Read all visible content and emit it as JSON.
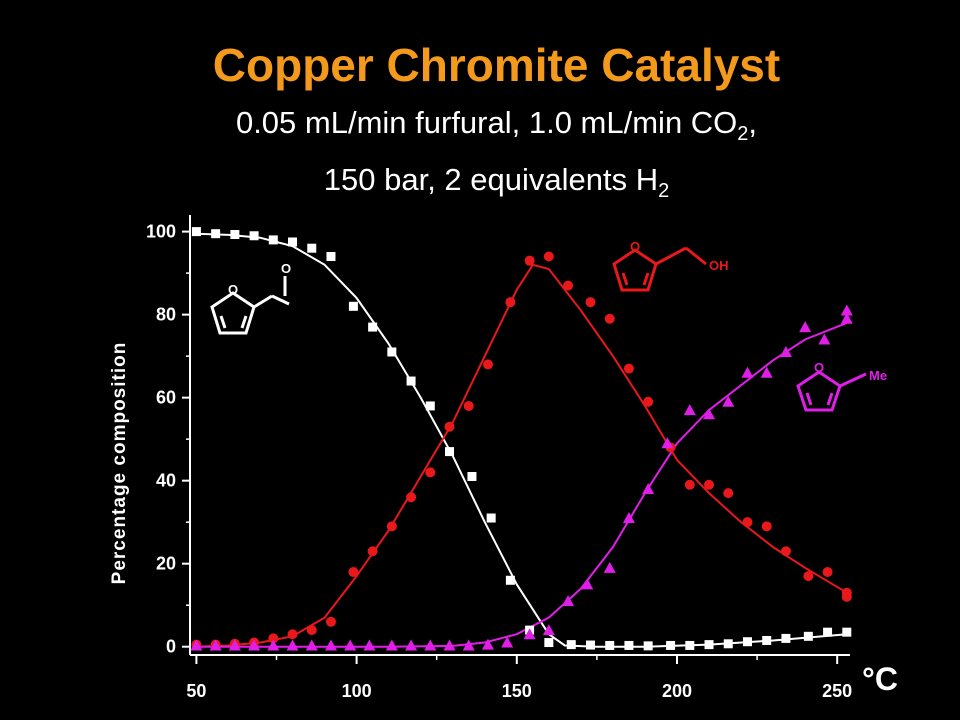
{
  "title": "Copper Chromite Catalyst",
  "subtitle": {
    "line1_a": "0.05 mL/min furfural, 1.0 mL/min CO",
    "line1_sub": "2",
    "line1_b": ",",
    "line2_a": "150 bar, 2 equivalents H",
    "line2_sub": "2"
  },
  "molecule_labels": {
    "furfural_O_ring": "O",
    "furfural_O_carbonyl": "O",
    "alcohol_O_ring": "O",
    "alcohol_OH": "OH",
    "methylfuran_O_ring": "O",
    "methylfuran_Me": "Me"
  },
  "colors": {
    "background": "#000000",
    "title": "#f39a1d",
    "furfural": "#ffffff",
    "furfuryl_alcohol": "#e8181b",
    "methylfuran": "#e01ee8",
    "axes": "#ffffff"
  },
  "chart_data": {
    "type": "scatter",
    "title": "",
    "xlabel": "°C",
    "ylabel": "Percentage composition",
    "xlim": [
      48,
      254
    ],
    "ylim": [
      -2,
      104
    ],
    "xticks": [
      50,
      100,
      150,
      200,
      250
    ],
    "yticks": [
      0,
      20,
      40,
      60,
      80,
      100
    ],
    "grid": false,
    "legend": "none",
    "series": [
      {
        "marker": "square",
        "color": "#ffffff",
        "x": [
          50,
          56,
          62,
          68,
          74,
          80,
          86,
          92,
          99,
          105,
          111,
          117,
          123,
          129,
          136,
          142,
          148,
          154,
          160,
          167,
          173,
          179,
          185,
          191,
          198,
          204,
          210,
          216,
          222,
          228,
          234,
          241,
          247,
          253
        ],
        "y": [
          100,
          99.5,
          99.3,
          99,
          98,
          97.5,
          96,
          94,
          82,
          77,
          71,
          64,
          58,
          47,
          41,
          31,
          16,
          4,
          1,
          0.5,
          0.4,
          0.3,
          0.3,
          0.2,
          0.3,
          0.3,
          0.5,
          0.7,
          1.2,
          1.5,
          2,
          2.5,
          3.5,
          3.5
        ],
        "fit_x": [
          50,
          60,
          70,
          80,
          90,
          100,
          110,
          120,
          130,
          140,
          150,
          160,
          165,
          175,
          190,
          210,
          230,
          253
        ],
        "fit_y": [
          99.5,
          99.2,
          98.5,
          96.5,
          92,
          84,
          73,
          60,
          46,
          30,
          15,
          3,
          0.3,
          0,
          0,
          0.5,
          1.5,
          3
        ]
      },
      {
        "marker": "circle",
        "color": "#e8181b",
        "x": [
          50,
          56,
          62,
          68,
          74,
          80,
          86,
          92,
          99,
          105,
          111,
          117,
          123,
          129,
          135,
          141,
          148,
          154,
          160,
          166,
          173,
          179,
          185,
          191,
          198,
          204,
          210,
          216,
          222,
          228,
          234,
          241,
          247,
          253,
          253
        ],
        "y": [
          0.5,
          0.5,
          0.7,
          1,
          2,
          3,
          4,
          6,
          18,
          23,
          29,
          36,
          42,
          53,
          58,
          68,
          83,
          93,
          94,
          87,
          83,
          79,
          67,
          59,
          48,
          39,
          39,
          37,
          30,
          29,
          23,
          17,
          18,
          13,
          12
        ],
        "fit_x": [
          50,
          60,
          70,
          80,
          90,
          100,
          110,
          120,
          130,
          140,
          150,
          155,
          160,
          170,
          180,
          190,
          200,
          210,
          220,
          230,
          240,
          253
        ],
        "fit_y": [
          0,
          0.3,
          1,
          2.5,
          7,
          17,
          28,
          41,
          54,
          70,
          86,
          92,
          91,
          81,
          70,
          58,
          45,
          37,
          30,
          24,
          19,
          13
        ]
      },
      {
        "marker": "triangle",
        "color": "#e01ee8",
        "x": [
          50,
          56,
          62,
          68,
          74,
          80,
          86,
          92,
          98,
          104,
          111,
          117,
          123,
          129,
          135,
          141,
          147,
          154,
          160,
          166,
          172,
          179,
          185,
          191,
          197,
          204,
          210,
          216,
          222,
          228,
          234,
          240,
          246,
          253,
          253
        ],
        "y": [
          0.3,
          0.3,
          0.3,
          0.3,
          0.3,
          0.3,
          0.3,
          0.3,
          0.3,
          0.3,
          0.3,
          0.3,
          0.3,
          0.3,
          0.3,
          0.5,
          1,
          3,
          4,
          11,
          15,
          19,
          31,
          38,
          49,
          57,
          56,
          59,
          66,
          66,
          71,
          77,
          74,
          81,
          79
        ],
        "fit_x": [
          50,
          80,
          110,
          130,
          140,
          150,
          160,
          170,
          180,
          190,
          200,
          210,
          220,
          230,
          240,
          253
        ],
        "fit_y": [
          0,
          0,
          0,
          0.2,
          1,
          3,
          7,
          14,
          24,
          37,
          49,
          57,
          63,
          69,
          74,
          78
        ]
      }
    ]
  }
}
